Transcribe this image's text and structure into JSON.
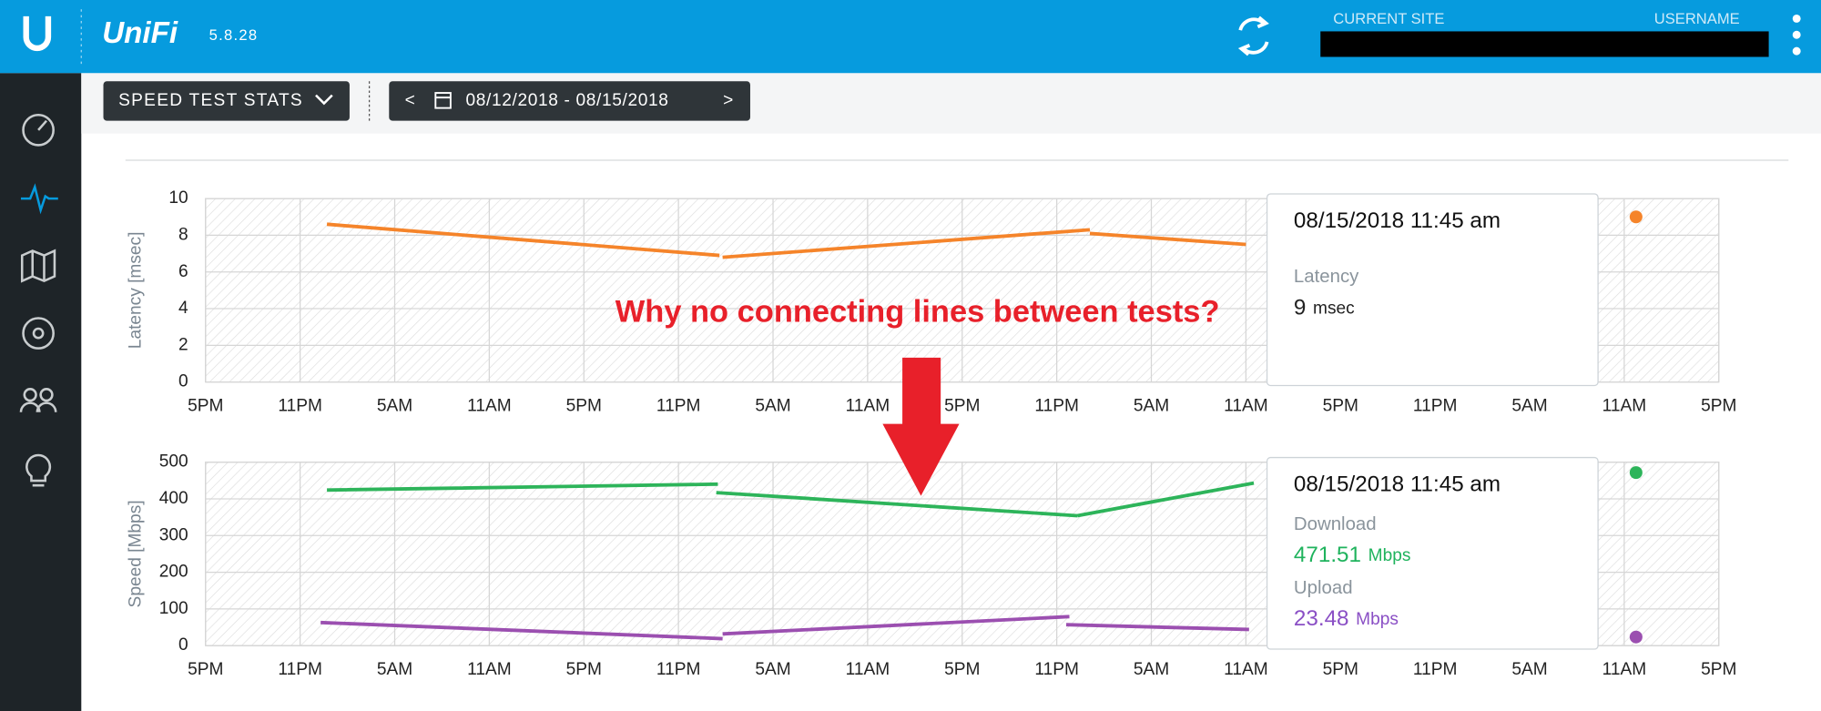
{
  "header": {
    "logo": "UniFi",
    "version": "5.8.28",
    "current_site_label": "CURRENT SITE",
    "username_label": "USERNAME"
  },
  "toolbar": {
    "view": "SPEED TEST STATS",
    "date_prev": "<",
    "date_range": "08/12/2018 - 08/15/2018",
    "date_next": ">"
  },
  "annotation": "Why no connecting lines between tests?",
  "chart_data": [
    {
      "type": "line",
      "ylabel": "Latency [msec]",
      "grid": true,
      "xlim": [
        0,
        96
      ],
      "xticks": [
        {
          "value": 0,
          "label": "5PM"
        },
        {
          "value": 6,
          "label": "11PM"
        },
        {
          "value": 12,
          "label": "5AM"
        },
        {
          "value": 18,
          "label": "11AM"
        },
        {
          "value": 24,
          "label": "5PM"
        },
        {
          "value": 30,
          "label": "11PM"
        },
        {
          "value": 36,
          "label": "5AM"
        },
        {
          "value": 42,
          "label": "11AM"
        },
        {
          "value": 48,
          "label": "5PM"
        },
        {
          "value": 54,
          "label": "11PM"
        },
        {
          "value": 60,
          "label": "5AM"
        },
        {
          "value": 66,
          "label": "11AM"
        },
        {
          "value": 72,
          "label": "5PM"
        },
        {
          "value": 78,
          "label": "11PM"
        },
        {
          "value": 84,
          "label": "5AM"
        },
        {
          "value": 90,
          "label": "11AM"
        },
        {
          "value": 96,
          "label": "5PM"
        }
      ],
      "ylim": [
        0,
        10
      ],
      "yticks": [
        0,
        2,
        4,
        6,
        8,
        10
      ],
      "series": [
        {
          "color": "#f5842a",
          "x": [
            7.7,
            32.6,
            null,
            32.8,
            56.1,
            null,
            56.1,
            66
          ],
          "values": [
            8.6,
            6.9,
            null,
            6.8,
            8.3,
            null,
            8.1,
            7.5
          ]
        }
      ],
      "tooltip": {
        "title": "08/15/2018 11:45 am",
        "x": 90.75,
        "items": [
          {
            "label": "Latency",
            "value": 9,
            "unit": "msec",
            "color": "#222222"
          }
        ]
      }
    },
    {
      "type": "line",
      "ylabel": "Speed [Mbps]",
      "grid": true,
      "xlim": [
        0,
        96
      ],
      "xticks": [
        {
          "value": 0,
          "label": "5PM"
        },
        {
          "value": 6,
          "label": "11PM"
        },
        {
          "value": 12,
          "label": "5AM"
        },
        {
          "value": 18,
          "label": "11AM"
        },
        {
          "value": 24,
          "label": "5PM"
        },
        {
          "value": 30,
          "label": "11PM"
        },
        {
          "value": 36,
          "label": "5AM"
        },
        {
          "value": 42,
          "label": "11AM"
        },
        {
          "value": 48,
          "label": "5PM"
        },
        {
          "value": 54,
          "label": "11PM"
        },
        {
          "value": 60,
          "label": "5AM"
        },
        {
          "value": 66,
          "label": "11AM"
        },
        {
          "value": 72,
          "label": "5PM"
        },
        {
          "value": 78,
          "label": "11PM"
        },
        {
          "value": 84,
          "label": "5AM"
        },
        {
          "value": 90,
          "label": "11AM"
        },
        {
          "value": 96,
          "label": "5PM"
        }
      ],
      "ylim": [
        0,
        500
      ],
      "yticks": [
        0,
        100,
        200,
        300,
        400,
        500
      ],
      "series": [
        {
          "color": "#2db45a",
          "x": [
            7.7,
            32.5,
            null,
            32.4,
            55.3,
            null,
            55.3,
            66.5
          ],
          "values": [
            424,
            440,
            null,
            417,
            354,
            null,
            354,
            443
          ]
        },
        {
          "color": "#9b4fb0",
          "x": [
            7.3,
            32.8,
            null,
            32.8,
            54.8,
            null,
            54.6,
            66.2
          ],
          "values": [
            63,
            19,
            null,
            32,
            79,
            null,
            57,
            44
          ]
        }
      ],
      "tooltip": {
        "title": "08/15/2018 11:45 am",
        "x": 90.75,
        "items": [
          {
            "label": "Download",
            "value": 471.51,
            "unit": "Mbps",
            "color": "#1fb35d"
          },
          {
            "label": "Upload",
            "value": 23.48,
            "unit": "Mbps",
            "color": "#8a4fc5"
          }
        ]
      }
    }
  ]
}
